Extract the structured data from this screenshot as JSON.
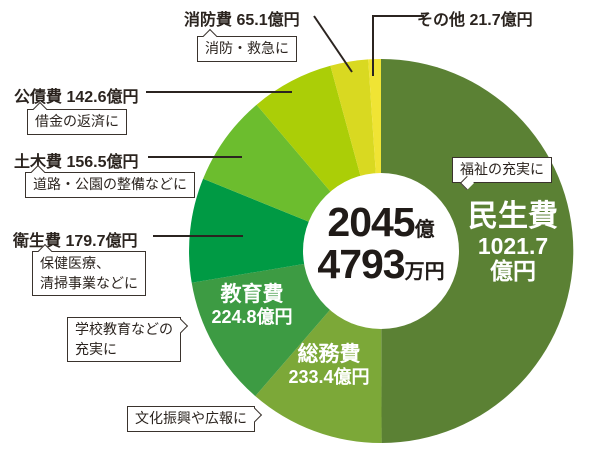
{
  "chart_data": {
    "type": "pie",
    "donut": true,
    "direction": "clockwise",
    "start_angle_deg": 0,
    "total_display": "2045億4793万円",
    "series": [
      {
        "name": "民生費",
        "value": 1021.7,
        "unit": "億円",
        "color": "#5b8134",
        "note": "福祉の充実に"
      },
      {
        "name": "総務費",
        "value": 233.4,
        "unit": "億円",
        "color": "#7ca838",
        "note": "文化振興や広報に"
      },
      {
        "name": "教育費",
        "value": 224.8,
        "unit": "億円",
        "color": "#3d9b43",
        "note": "学校教育などの充実に"
      },
      {
        "name": "衛生費",
        "value": 179.7,
        "unit": "億円",
        "color": "#009a44",
        "note": "保健医療、清掃事業などに"
      },
      {
        "name": "土木費",
        "value": 156.5,
        "unit": "億円",
        "color": "#6cbd2e",
        "note": "道路・公園の整備などに"
      },
      {
        "name": "公債費",
        "value": 142.6,
        "unit": "億円",
        "color": "#abce07",
        "note": "借金の返済に"
      },
      {
        "name": "消防費",
        "value": 65.1,
        "unit": "億円",
        "color": "#d9d921",
        "note": "消防・救急に"
      },
      {
        "name": "その他",
        "value": 21.7,
        "unit": "億円",
        "color": "#f0e434",
        "note": ""
      }
    ]
  },
  "ext_labels": {
    "shobo": "消防費 65.1億円",
    "sonota": "その他 21.7億円",
    "kosai": "公債費 142.6億円",
    "doboku": "土木費 156.5億円",
    "eisei": "衛生費 179.7億円"
  },
  "callouts": {
    "shobo": "消防・救急に",
    "kosai": "借金の返済に",
    "doboku": "道路・公園の整備などに",
    "eisei_line1": "保健医療、",
    "eisei_line2": "清掃事業などに",
    "kyoiku_line1": "学校教育などの",
    "kyoiku_line2": "充実に",
    "somu": "文化振興や広報に",
    "minsei": "福祉の充実に"
  },
  "slice_labels": {
    "minsei": {
      "name": "民生費",
      "value": "1021.7",
      "unit": "億円"
    },
    "kyoiku": {
      "name": "教育費",
      "value": "224.8億円"
    },
    "somu": {
      "name": "総務費",
      "value": "233.4億円"
    }
  },
  "center": {
    "value1": "2045",
    "unit1": "億",
    "value2": "4793",
    "unit2": "万円"
  }
}
